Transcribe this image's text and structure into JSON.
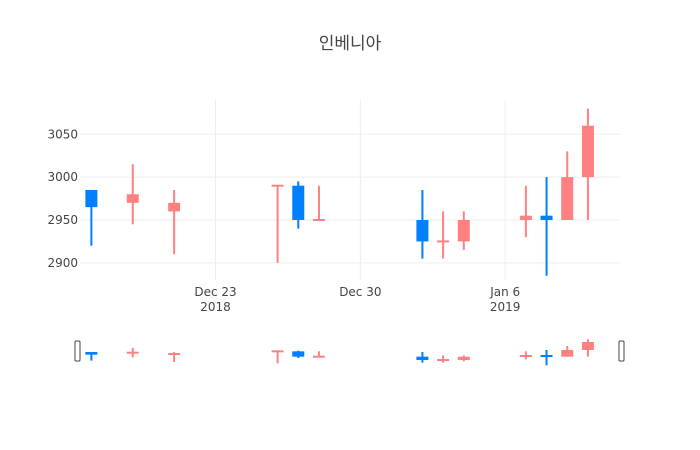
{
  "chart_data": {
    "type": "candlestick",
    "title": "인베니아",
    "xlabel": "",
    "ylabel": "",
    "increasing_color": "#ff8080",
    "decreasing_color": "#0080ff",
    "y_ticks": [
      2900,
      2950,
      3000,
      3050
    ],
    "ylim": [
      2880,
      3090
    ],
    "xlim": [
      "2018-12-17",
      "2019-01-11"
    ],
    "x_ticks": [
      {
        "date": "2018-12-23",
        "label": "Dec 23",
        "sublabel": "2018"
      },
      {
        "date": "2018-12-30",
        "label": "Dec 30",
        "sublabel": ""
      },
      {
        "date": "2019-01-06",
        "label": "Jan 6",
        "sublabel": "2019"
      }
    ],
    "range_slider": true,
    "candles": [
      {
        "date": "2018-12-17",
        "open": 2985,
        "high": 2985,
        "low": 2920,
        "close": 2965
      },
      {
        "date": "2018-12-19",
        "open": 2970,
        "high": 3015,
        "low": 2945,
        "close": 2980
      },
      {
        "date": "2018-12-21",
        "open": 2960,
        "high": 2985,
        "low": 2910,
        "close": 2970
      },
      {
        "date": "2018-12-26",
        "open": 2990,
        "high": 2990,
        "low": 2900,
        "close": 2990
      },
      {
        "date": "2018-12-27",
        "open": 2990,
        "high": 2995,
        "low": 2940,
        "close": 2950
      },
      {
        "date": "2018-12-28",
        "open": 2950,
        "high": 2990,
        "low": 2950,
        "close": 2950
      },
      {
        "date": "2019-01-02",
        "open": 2950,
        "high": 2985,
        "low": 2905,
        "close": 2925
      },
      {
        "date": "2019-01-03",
        "open": 2925,
        "high": 2960,
        "low": 2905,
        "close": 2925
      },
      {
        "date": "2019-01-04",
        "open": 2925,
        "high": 2960,
        "low": 2915,
        "close": 2950
      },
      {
        "date": "2019-01-07",
        "open": 2950,
        "high": 2990,
        "low": 2930,
        "close": 2955
      },
      {
        "date": "2019-01-08",
        "open": 2955,
        "high": 3000,
        "low": 2885,
        "close": 2950
      },
      {
        "date": "2019-01-09",
        "open": 2950,
        "high": 3030,
        "low": 2950,
        "close": 3000
      },
      {
        "date": "2019-01-10",
        "open": 3000,
        "high": 3080,
        "low": 2950,
        "close": 3060
      }
    ]
  }
}
